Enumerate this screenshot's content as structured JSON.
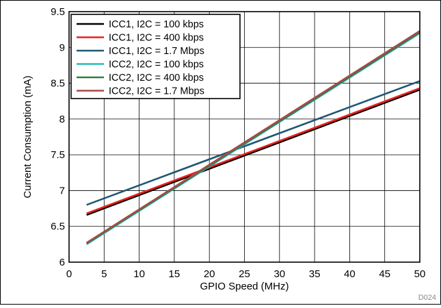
{
  "chart_data": {
    "type": "line",
    "title": "",
    "xlabel": "GPIO Speed (MHz)",
    "ylabel": "Current Consumption (mA)",
    "xlim": [
      0,
      50
    ],
    "ylim": [
      6,
      9.5
    ],
    "xticks": [
      0,
      5,
      10,
      15,
      20,
      25,
      30,
      35,
      40,
      45,
      50
    ],
    "yticks": [
      6,
      6.5,
      7,
      7.5,
      8,
      8.5,
      9,
      9.5
    ],
    "xtick_labels": [
      "0",
      "5",
      "10",
      "15",
      "20",
      "25",
      "30",
      "35",
      "40",
      "45",
      "50"
    ],
    "ytick_labels": [
      "6",
      "6.5",
      "7",
      "7.5",
      "8",
      "8.5",
      "9",
      "9.5"
    ],
    "grid": true,
    "legend_position": "top-left",
    "series": [
      {
        "name": "ICC1, I2C = 100 kbps",
        "color": "#000000",
        "x": [
          2.5,
          50
        ],
        "y": [
          6.66,
          8.41
        ]
      },
      {
        "name": "ICC1, I2C = 400 kbps",
        "color": "#e8221f",
        "x": [
          2.5,
          50
        ],
        "y": [
          6.68,
          8.43
        ]
      },
      {
        "name": "ICC1, I2C = 1.7 Mbps",
        "color": "#1f5773",
        "x": [
          2.5,
          50
        ],
        "y": [
          6.8,
          8.53
        ]
      },
      {
        "name": "ICC2, I2C = 100 kbps",
        "color": "#26b8c4",
        "x": [
          2.5,
          50
        ],
        "y": [
          6.25,
          9.2
        ]
      },
      {
        "name": "ICC2, I2C = 400 kbps",
        "color": "#2f7e4a",
        "x": [
          2.5,
          50
        ],
        "y": [
          6.26,
          9.21
        ]
      },
      {
        "name": "ICC2, I2C = 1.7 Mbps",
        "color": "#a84a45",
        "x": [
          2.5,
          50
        ],
        "y": [
          6.27,
          9.23
        ]
      }
    ]
  },
  "footnote": "D024"
}
